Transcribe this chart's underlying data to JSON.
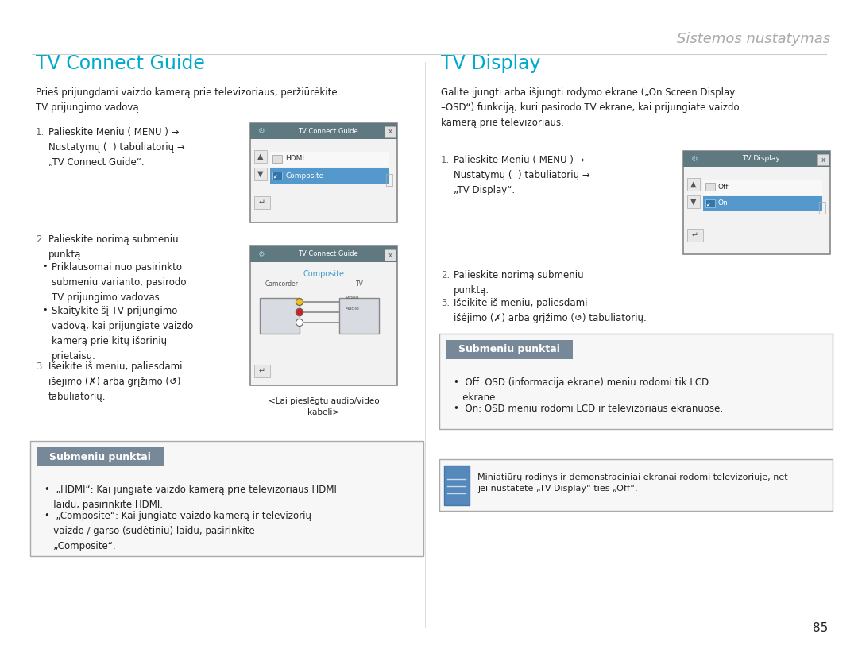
{
  "bg_color": "#ffffff",
  "page_title": "Sistemos nustatymas",
  "page_number": "85",
  "title_color": "#00aacc",
  "text_color": "#222222",
  "gray_color": "#666666",
  "left_title": "TV Connect Guide",
  "right_title": "TV Display",
  "left_intro": "Prieš prijungdami vaizdo kamerą prie televizoriaus, peržiūrėkite\nTV prijungimo vadovą.",
  "right_intro": "Galite įjungti arba išjungti rodymo ekrane („On Screen Display\n–OSD“) funkciją, kuri pasirodo TV ekrane, kai prijungiate vaizdo\nkamerą prie televizoriaus.",
  "left_submenu_title": "Submeniu punktai",
  "right_submenu_title": "Submeniu punktai",
  "note_text": "Miniatiūrų rodinys ir demonstraciniai ekranai rodomi televizoriuje, net\njei nustatėte „TV Display“ ties „Off“.",
  "caption": "<Lai pieslēgtu audio/video\nkabeli>"
}
